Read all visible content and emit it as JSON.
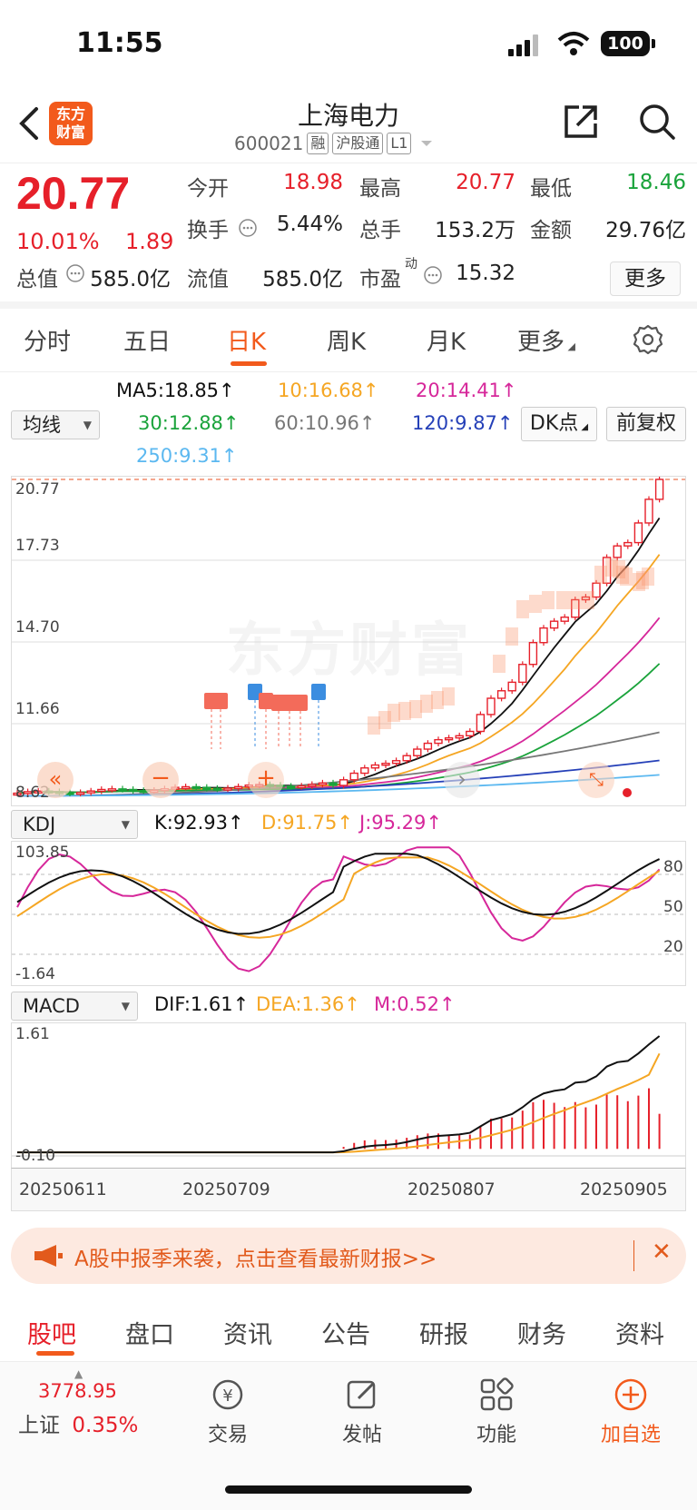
{
  "status": {
    "time": "11:55",
    "battery": "100"
  },
  "header": {
    "title": "上海电力",
    "code": "600021",
    "tags": [
      "融",
      "沪股通",
      "L1"
    ],
    "logo": [
      "东方",
      "财富"
    ]
  },
  "quote": {
    "price": "20.77",
    "change_pct": "10.01%",
    "change": "1.89",
    "open_label": "今开",
    "open": "18.98",
    "high_label": "最高",
    "high": "20.77",
    "low_label": "最低",
    "low": "18.46",
    "turnover_label": "换手",
    "turnover": "5.44%",
    "volume_label": "总手",
    "volume": "153.2万",
    "amount_label": "金额",
    "amount": "29.76亿",
    "mktcap_label": "总值",
    "mktcap": "585.0亿",
    "float_label": "流值",
    "float": "585.0亿",
    "pe_label": "市盈",
    "pe_sup": "动",
    "pe": "15.32",
    "more_label": "更多"
  },
  "period_tabs": [
    "分时",
    "五日",
    "日K",
    "周K",
    "月K",
    "更多"
  ],
  "active_period": "日K",
  "ma_legend": {
    "selector": "均线",
    "ma5": "MA5:18.85↑",
    "ma10": "10:16.68↑",
    "ma20": "20:14.41↑",
    "ma30": "30:12.88↑",
    "ma60": "60:10.96↑",
    "ma120": "120:9.87↑",
    "ma250": "250:9.31↑",
    "dk_label": "DK点",
    "fq_label": "前复权"
  },
  "colors": {
    "up": "#e6202a",
    "down": "#1aa33b",
    "ma5": "#111111",
    "ma10": "#f5a623",
    "ma20": "#d6279a",
    "ma30": "#1aa33b",
    "ma60": "#777777",
    "ma120": "#2540b8",
    "ma250": "#5bb8f0",
    "accent": "#f25a1c"
  },
  "kline": {
    "y_ticks": [
      "20.77",
      "17.73",
      "14.70",
      "11.66",
      "8.62"
    ],
    "watermark": "东方财富"
  },
  "kdj": {
    "selector": "KDJ",
    "k": "K:92.93↑",
    "d": "D:91.75↑",
    "j": "J:95.29↑",
    "y_top": "103.85",
    "y_bottom": "-1.64",
    "levels": [
      "80",
      "50",
      "20"
    ]
  },
  "macd": {
    "selector": "MACD",
    "dif": "DIF:1.61↑",
    "dea": "DEA:1.36↑",
    "m": "M:0.52↑",
    "y_top": "1.61",
    "y_bottom": "-0.10"
  },
  "dates": [
    "20250611",
    "20250709",
    "20250807",
    "20250905"
  ],
  "banner": {
    "text": "A股中报季来袭，点击查看最新财报>>"
  },
  "bottom_tabs": [
    "股吧",
    "盘口",
    "资讯",
    "公告",
    "研报",
    "财务",
    "资料"
  ],
  "toolbar": {
    "index_value": "3778.95",
    "index_name": "上证",
    "index_pct": "0.35%",
    "trade": "交易",
    "post": "发帖",
    "func": "功能",
    "watch": "加自选"
  }
}
